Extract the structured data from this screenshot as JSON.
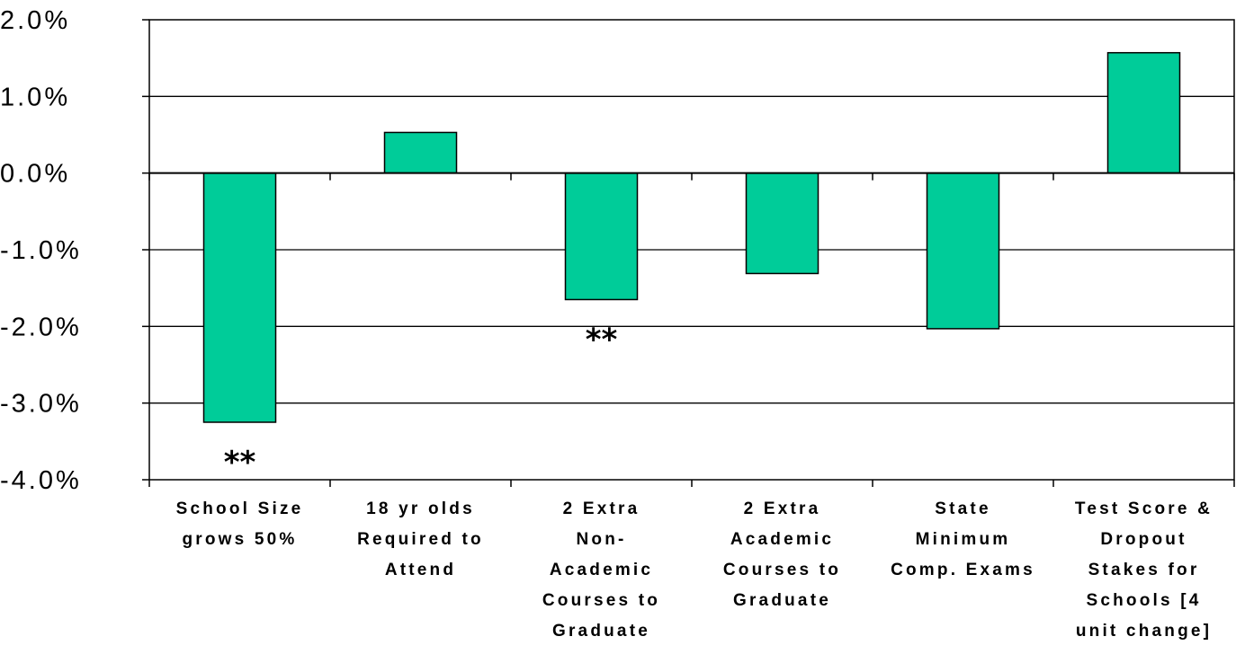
{
  "chart_data": {
    "type": "bar",
    "title": "",
    "xlabel": "",
    "ylabel": "",
    "ylim": [
      -4.0,
      2.0
    ],
    "yticks": [
      2.0,
      1.0,
      0.0,
      -1.0,
      -2.0,
      -3.0,
      -4.0
    ],
    "ytick_labels": [
      "2.0%",
      "1.0%",
      "0.0%",
      "-1.0%",
      "-2.0%",
      "-3.0%",
      "-4.0%"
    ],
    "grid": "horizontal",
    "categories": [
      [
        "School Size",
        "grows 50%"
      ],
      [
        "18 yr olds",
        "Required to",
        "Attend"
      ],
      [
        "2 Extra",
        "Non-",
        "Academic",
        "Courses to",
        "Graduate"
      ],
      [
        "2 Extra",
        "Academic",
        "Courses to",
        "Graduate"
      ],
      [
        "State",
        "Minimum",
        "Comp. Exams"
      ],
      [
        "Test Score &",
        "Dropout",
        "Stakes for",
        "Schools  [4",
        "unit change]"
      ]
    ],
    "values": [
      -3.25,
      0.53,
      -1.65,
      -1.31,
      -2.03,
      1.57
    ],
    "annotations": [
      "**",
      "",
      "**",
      "",
      "",
      ""
    ],
    "bar_color": "#00CC99",
    "bar_edge_color": "#000000"
  }
}
